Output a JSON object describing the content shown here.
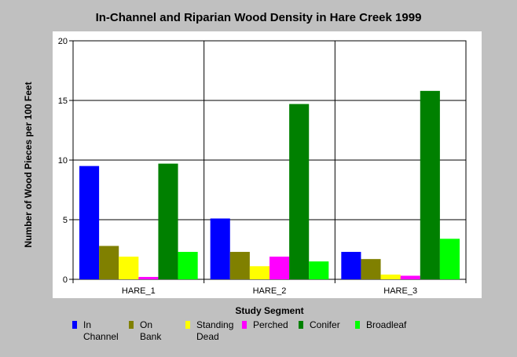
{
  "chart_data": {
    "type": "bar",
    "title": "In-Channel and Riparian Wood Density in Hare Creek 1999",
    "xlabel": "Study Segment",
    "ylabel": "Number of Wood Pieces per 100 Feet",
    "ylim": [
      0,
      20
    ],
    "yticks": [
      "0",
      "5",
      "10",
      "15",
      "20"
    ],
    "categories": [
      "HARE_1",
      "HARE_2",
      "HARE_3"
    ],
    "grid": true,
    "legend_position": "bottom",
    "series": [
      {
        "name": "In Channel",
        "color": "#0000ff",
        "values": [
          9.5,
          5.1,
          2.3
        ]
      },
      {
        "name": "On Bank",
        "color": "#808000",
        "values": [
          2.8,
          2.3,
          1.7
        ]
      },
      {
        "name": "Standing Dead",
        "color": "#ffff00",
        "values": [
          1.9,
          1.1,
          0.4
        ]
      },
      {
        "name": "Perched",
        "color": "#ff00ff",
        "values": [
          0.2,
          1.9,
          0.3
        ]
      },
      {
        "name": "Conifer",
        "color": "#008000",
        "values": [
          9.7,
          14.7,
          15.8
        ]
      },
      {
        "name": "Broadleaf",
        "color": "#00ff00",
        "values": [
          2.3,
          1.5,
          3.4
        ]
      }
    ]
  }
}
